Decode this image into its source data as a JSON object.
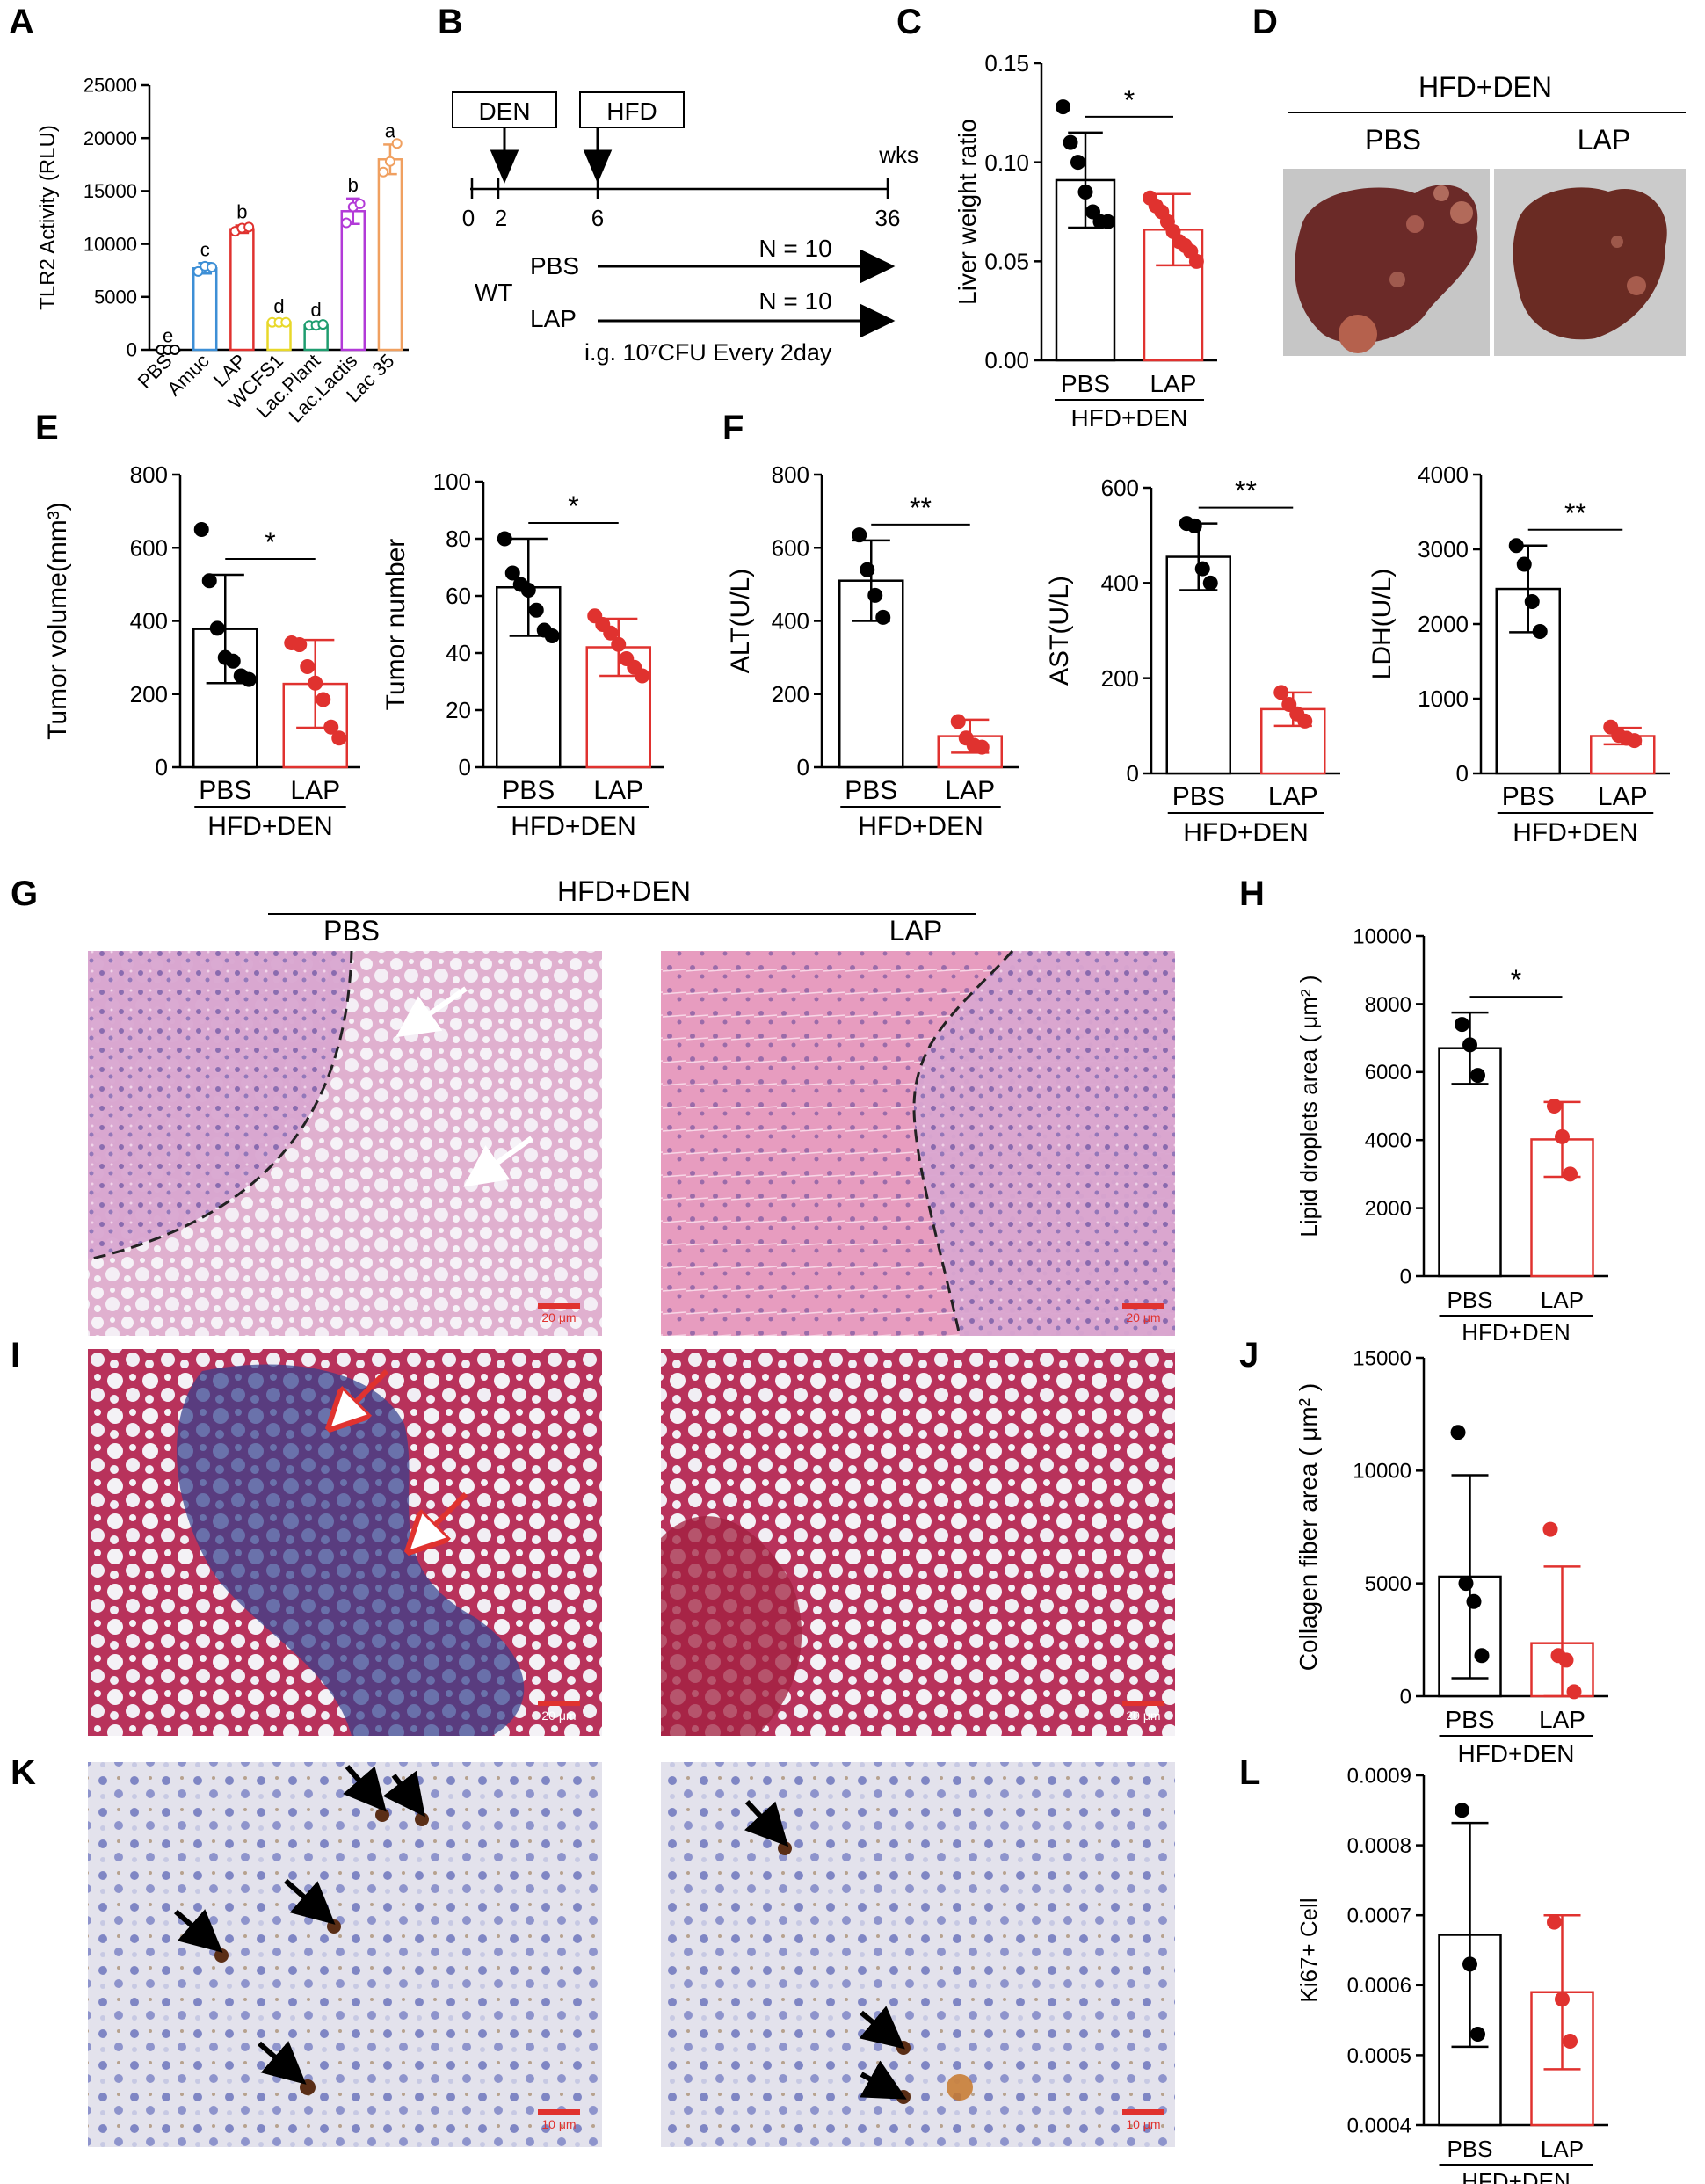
{
  "panel_labels": [
    "A",
    "B",
    "C",
    "D",
    "E",
    "F",
    "G",
    "H",
    "I",
    "J",
    "K",
    "L"
  ],
  "colors": {
    "black": "#000000",
    "red": "#e0322f",
    "he_pink": "#e6a8c8",
    "he_purple": "#a77fb9",
    "masson_red": "#c03a5e",
    "masson_blue": "#2f3d8f",
    "ihc_blue": "#8f96cc",
    "ihc_brown": "#6b3a1a",
    "liver_brown": "#6e2f2a",
    "gray_bg": "#c9c9c9"
  },
  "timeline": {
    "box_den": "DEN",
    "box_hfd": "HFD",
    "unit": "wks",
    "ticks": [
      "0",
      "2",
      "6",
      "36"
    ],
    "group": "WT",
    "rows": [
      {
        "name": "PBS",
        "n": "N = 10"
      },
      {
        "name": "LAP",
        "n": "N = 10"
      }
    ],
    "dose": "i.g. 10⁷CFU Every 2day"
  },
  "photo": {
    "group": "HFD+DEN",
    "left": "PBS",
    "right": "LAP"
  },
  "histology": {
    "group": "HFD+DEN",
    "left": "PBS",
    "right": "LAP",
    "scale_he": "20 μm",
    "scale_masson": "20 μm",
    "scale_ihc": "10 μm"
  },
  "chart_data": [
    {
      "id": "A",
      "type": "bar",
      "ylabel": "TLR2 Activity (RLU)",
      "ylim": [
        0,
        25000
      ],
      "yticks": [
        "0",
        "5000",
        "10000",
        "15000",
        "20000",
        "25000"
      ],
      "categories": [
        "PBS",
        "Amuc",
        "LAP",
        "WCFS1",
        "Lac.Plant",
        "Lac.Lactis",
        "Lac 35"
      ],
      "values": [
        0,
        7700,
        11400,
        2600,
        2300,
        13100,
        18000
      ],
      "errors": [
        60,
        500,
        350,
        220,
        180,
        1200,
        1400
      ],
      "letters": [
        "e",
        "c",
        "b",
        "d",
        "d",
        "b",
        "a"
      ],
      "colors": [
        "#000000",
        "#3d8fd6",
        "#e0322f",
        "#e8d82a",
        "#1f9d6f",
        "#b23ad8",
        "#f0a060"
      ],
      "points": [
        [
          0,
          0,
          0
        ],
        [
          7400,
          7900,
          7800
        ],
        [
          11200,
          11500,
          11600
        ],
        [
          2600,
          2600,
          2600
        ],
        [
          2300,
          2300,
          2400
        ],
        [
          12000,
          13500,
          13800
        ],
        [
          16800,
          17800,
          19500
        ]
      ]
    },
    {
      "id": "C",
      "type": "bar",
      "ylabel": "Liver weight ratio",
      "ylim": [
        0,
        0.15
      ],
      "yticks": [
        "0.00",
        "0.05",
        "0.10",
        "0.15"
      ],
      "categories": [
        "PBS",
        "LAP"
      ],
      "group": "HFD+DEN",
      "values": [
        0.091,
        0.066
      ],
      "errors": [
        0.024,
        0.018
      ],
      "sig": "*",
      "points": [
        [
          0.128,
          0.11,
          0.1,
          0.085,
          0.075,
          0.07,
          0.07
        ],
        [
          0.082,
          0.078,
          0.075,
          0.07,
          0.065,
          0.06,
          0.058,
          0.055,
          0.05
        ]
      ]
    },
    {
      "id": "E1",
      "type": "bar",
      "ylabel": "Tumor volume(mm³)",
      "ylim": [
        0,
        800
      ],
      "yticks": [
        "0",
        "200",
        "400",
        "600",
        "800"
      ],
      "categories": [
        "PBS",
        "LAP"
      ],
      "group": "HFD+DEN",
      "values": [
        378,
        228
      ],
      "errors": [
        148,
        120
      ],
      "sig": "*",
      "points": [
        [
          650,
          510,
          380,
          300,
          290,
          250,
          240
        ],
        [
          340,
          335,
          275,
          230,
          185,
          110,
          80
        ]
      ]
    },
    {
      "id": "E2",
      "type": "bar",
      "ylabel": "Tumor number",
      "ylim": [
        0,
        100
      ],
      "yticks": [
        "0",
        "20",
        "40",
        "60",
        "80",
        "100"
      ],
      "categories": [
        "PBS",
        "LAP"
      ],
      "group": "HFD+DEN",
      "values": [
        63,
        42
      ],
      "errors": [
        17,
        10
      ],
      "sig": "*",
      "points": [
        [
          80,
          68,
          64,
          62,
          55,
          48,
          46
        ],
        [
          53,
          50,
          47,
          43,
          38,
          35,
          32
        ]
      ]
    },
    {
      "id": "F1",
      "type": "bar",
      "ylabel": "ALT(U/L)",
      "ylim": [
        0,
        800
      ],
      "yticks": [
        "0",
        "200",
        "400",
        "600",
        "800"
      ],
      "categories": [
        "PBS",
        "LAP"
      ],
      "group": "HFD+DEN",
      "values": [
        510,
        85
      ],
      "errors": [
        110,
        45
      ],
      "sig": "**",
      "points": [
        [
          635,
          540,
          470,
          410
        ],
        [
          125,
          80,
          60,
          55
        ]
      ]
    },
    {
      "id": "F2",
      "type": "bar",
      "ylabel": "AST(U/L)",
      "ylim": [
        0,
        600
      ],
      "yticks": [
        "0",
        "200",
        "400",
        "600"
      ],
      "categories": [
        "PBS",
        "LAP"
      ],
      "group": "HFD+DEN",
      "values": [
        455,
        135
      ],
      "errors": [
        70,
        35
      ],
      "sig": "**",
      "points": [
        [
          525,
          520,
          430,
          400
        ],
        [
          170,
          145,
          125,
          110
        ]
      ]
    },
    {
      "id": "F3",
      "type": "bar",
      "ylabel": "LDH(U/L)",
      "ylim": [
        0,
        4000
      ],
      "yticks": [
        "0",
        "1000",
        "2000",
        "3000",
        "4000"
      ],
      "categories": [
        "PBS",
        "LAP"
      ],
      "group": "HFD+DEN",
      "values": [
        2470,
        500
      ],
      "errors": [
        580,
        110
      ],
      "sig": "**",
      "points": [
        [
          3050,
          2800,
          2300,
          1900
        ],
        [
          620,
          510,
          470,
          440
        ]
      ]
    },
    {
      "id": "H",
      "type": "bar",
      "ylabel": "Lipid droplets area ( μm² )",
      "ylim": [
        0,
        10000
      ],
      "yticks": [
        "0",
        "2000",
        "4000",
        "6000",
        "8000",
        "10000"
      ],
      "categories": [
        "PBS",
        "LAP"
      ],
      "group": "HFD+DEN",
      "values": [
        6700,
        4020
      ],
      "errors": [
        1050,
        1100
      ],
      "sig": "*",
      "points": [
        [
          7400,
          6800,
          5900
        ],
        [
          5000,
          4100,
          3000
        ]
      ]
    },
    {
      "id": "J",
      "type": "bar",
      "ylabel": "Collagen fiber area ( μm² )",
      "ylim": [
        0,
        15000
      ],
      "yticks": [
        "0",
        "5000",
        "10000",
        "15000"
      ],
      "categories": [
        "PBS",
        "LAP"
      ],
      "group": "HFD+DEN",
      "values": [
        5300,
        2350
      ],
      "errors": [
        4500,
        3400
      ],
      "sig": "",
      "points": [
        [
          11700,
          5000,
          4200,
          1800
        ],
        [
          7400,
          1800,
          1600,
          200
        ]
      ]
    },
    {
      "id": "L",
      "type": "bar",
      "ylabel": "Ki67+ Cell",
      "ylim": [
        0.0004,
        0.0009
      ],
      "yticks": [
        "0.0004",
        "0.0005",
        "0.0006",
        "0.0007",
        "0.0008",
        "0.0009"
      ],
      "categories": [
        "PBS",
        "LAP"
      ],
      "group": "HFD+DEN",
      "values": [
        0.000672,
        0.00059
      ],
      "errors": [
        0.00016,
        0.00011
      ],
      "sig": "",
      "points": [
        [
          0.00085,
          0.00063,
          0.00053
        ],
        [
          0.00069,
          0.00058,
          0.00052
        ]
      ]
    }
  ]
}
